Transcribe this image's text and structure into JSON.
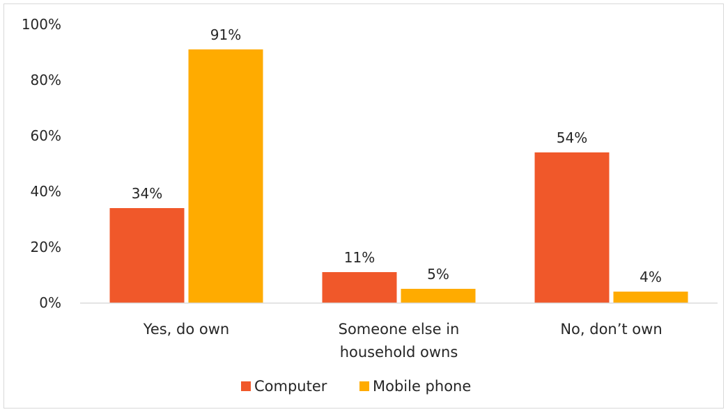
{
  "chart_data": {
    "type": "bar",
    "title": "",
    "xlabel": "",
    "ylabel": "",
    "categories": [
      [
        "Yes, do own"
      ],
      [
        "Someone else in",
        "household owns"
      ],
      [
        "No, don’t own"
      ]
    ],
    "series": [
      {
        "name": "Computer",
        "values": [
          34,
          11,
          54
        ],
        "labels": [
          "34%",
          "11%",
          "54%"
        ]
      },
      {
        "name": "Mobile phone",
        "values": [
          91,
          5,
          4
        ],
        "labels": [
          "91%",
          "5%",
          "4%"
        ]
      }
    ],
    "ylim": [
      0,
      100
    ],
    "yticks": [
      0,
      20,
      40,
      60,
      80,
      100
    ],
    "ytick_labels": [
      "0%",
      "20%",
      "40%",
      "60%",
      "80%",
      "100%"
    ],
    "grid": false,
    "legend_position": "bottom-center"
  },
  "colors": {
    "Computer": "#f0582a",
    "Mobile phone": "#ffab00",
    "axis": "#d9d9d9",
    "text": "#262626"
  }
}
